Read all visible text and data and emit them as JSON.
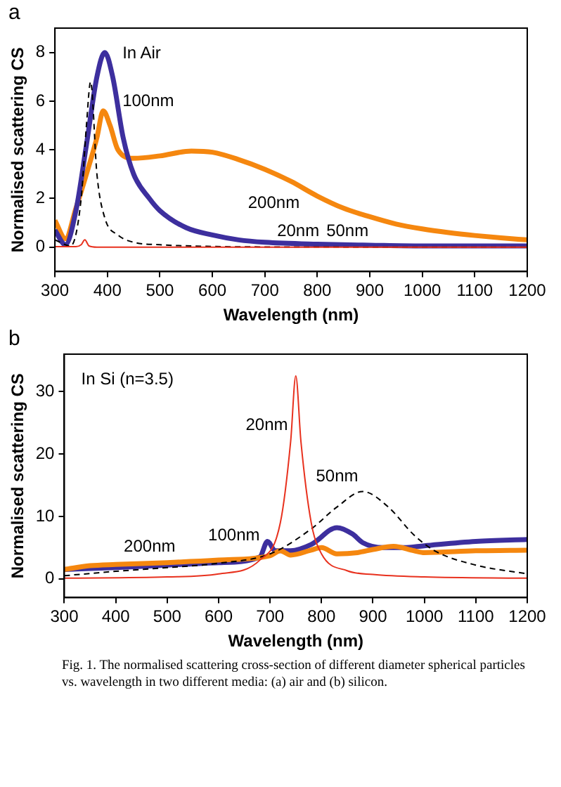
{
  "chart_data": [
    {
      "type": "line",
      "title": "a",
      "xlabel": "Wavelength (nm)",
      "ylabel": "Normalised scattering CS",
      "xlim": [
        300,
        1200
      ],
      "xticks": [
        300,
        400,
        500,
        600,
        700,
        800,
        900,
        1000,
        1100,
        1200
      ],
      "ylim": [
        -1,
        9
      ],
      "yticks": [
        0,
        2,
        4,
        6,
        8
      ],
      "grid": false,
      "legend": false,
      "marker": "none",
      "series": [
        {
          "name": "200nm",
          "color": "#f5870f",
          "x": [
            300,
            320,
            340,
            360,
            380,
            392,
            405,
            420,
            450,
            500,
            560,
            600,
            650,
            700,
            750,
            800,
            850,
            900,
            950,
            1000,
            1050,
            1100,
            1150,
            1200
          ],
          "values": [
            1.1,
            0.35,
            1.6,
            3.0,
            4.5,
            5.6,
            5.0,
            4.0,
            3.65,
            3.75,
            3.95,
            3.9,
            3.6,
            3.2,
            2.7,
            2.1,
            1.6,
            1.25,
            0.95,
            0.75,
            0.6,
            0.48,
            0.38,
            0.3
          ]
        },
        {
          "name": "100nm",
          "color": "#3d2f9e",
          "x": [
            300,
            320,
            340,
            360,
            380,
            395,
            410,
            430,
            450,
            480,
            500,
            550,
            600,
            650,
            700,
            800,
            900,
            1000,
            1200
          ],
          "values": [
            0.7,
            0.1,
            1.5,
            4.2,
            7.0,
            8.0,
            7.0,
            4.5,
            3.0,
            2.0,
            1.5,
            0.8,
            0.5,
            0.3,
            0.2,
            0.12,
            0.08,
            0.05,
            0.05
          ]
        },
        {
          "name": "50nm",
          "color": "#000000",
          "line_style": "dashed",
          "x": [
            300,
            330,
            350,
            360,
            368,
            380,
            395,
            420,
            450,
            500,
            600,
            700,
            1200
          ],
          "values": [
            0.3,
            0.05,
            2,
            5,
            6.8,
            3,
            1.2,
            0.5,
            0.2,
            0.1,
            0.03,
            0.01,
            0
          ]
        },
        {
          "name": "20nm",
          "color": "#e8311e",
          "x": [
            300,
            340,
            350,
            357,
            365,
            380,
            1200
          ],
          "values": [
            0.02,
            0.02,
            0.1,
            0.3,
            0.05,
            0,
            0
          ]
        }
      ],
      "annotations": [
        "In Air"
      ]
    },
    {
      "type": "line",
      "title": "b",
      "xlabel": "Wavelength (nm)",
      "ylabel": "Normalised scattering CS",
      "xlim": [
        300,
        1200
      ],
      "xticks": [
        300,
        400,
        500,
        600,
        700,
        800,
        900,
        1000,
        1100,
        1200
      ],
      "ylim": [
        -3,
        36
      ],
      "yticks": [
        0,
        10,
        20,
        30
      ],
      "grid": false,
      "legend": false,
      "marker": "none",
      "series": [
        {
          "name": "100nm",
          "color": "#3d2f9e",
          "x": [
            300,
            400,
            500,
            600,
            680,
            695,
            710,
            740,
            780,
            830,
            860,
            880,
            920,
            960,
            1000,
            1100,
            1200
          ],
          "values": [
            1.5,
            1.8,
            2.2,
            2.6,
            3.5,
            6.0,
            4.5,
            4.5,
            5.5,
            8.2,
            7.2,
            5.8,
            5.0,
            5.0,
            5.3,
            6.0,
            6.3
          ]
        },
        {
          "name": "200nm",
          "color": "#f5870f",
          "x": [
            300,
            350,
            400,
            500,
            600,
            700,
            720,
            740,
            780,
            800,
            830,
            870,
            900,
            940,
            980,
            1000,
            1100,
            1200
          ],
          "values": [
            1.5,
            2.1,
            2.3,
            2.6,
            3.0,
            3.7,
            4.5,
            3.8,
            4.6,
            5.0,
            4.0,
            4.2,
            4.7,
            5.2,
            4.5,
            4.2,
            4.5,
            4.6
          ]
        },
        {
          "name": "50nm",
          "color": "#000000",
          "line_style": "dashed",
          "x": [
            300,
            400,
            500,
            600,
            700,
            780,
            830,
            880,
            930,
            980,
            1020,
            1100,
            1200
          ],
          "values": [
            0.5,
            1.2,
            1.8,
            2.5,
            4.0,
            8.0,
            11.5,
            14,
            11.5,
            7.0,
            4.5,
            2.2,
            0.8
          ]
        },
        {
          "name": "20nm",
          "color": "#e8311e",
          "x": [
            300,
            500,
            600,
            680,
            720,
            740,
            750,
            760,
            780,
            800,
            850,
            900,
            1000,
            1200
          ],
          "values": [
            0.1,
            0.3,
            0.8,
            3,
            9,
            22,
            32.5,
            22,
            9,
            4,
            1.3,
            0.7,
            0.3,
            0.1
          ]
        }
      ],
      "annotations": [
        "In Si (n=3.5)",
        "Fig. 1. The normalised scattering cross-section of different diameter spherical particles vs. wavelength in two different media: (a) air and (b) silicon."
      ]
    }
  ]
}
